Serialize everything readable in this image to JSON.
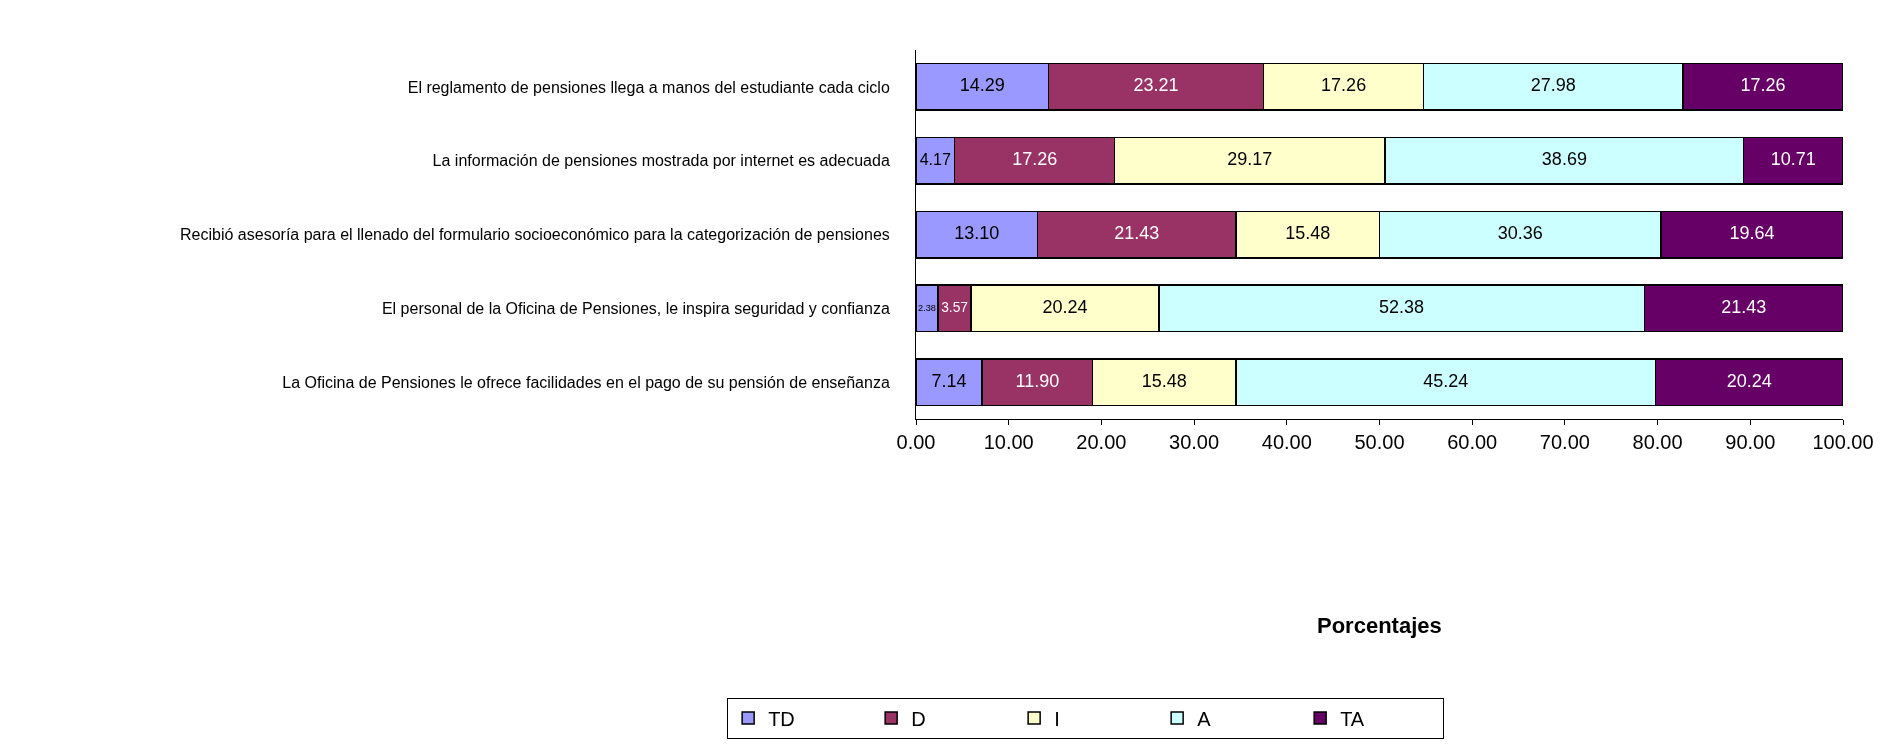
{
  "chart_data": {
    "type": "bar",
    "orientation": "horizontal",
    "stacked": true,
    "categories": [
      "El reglamento de pensiones llega a manos del estudiante cada ciclo",
      "La información de pensiones mostrada por internet es adecuada",
      "Recibió asesoría para el llenado del formulario socioeconómico para la categorización de pensiones",
      "El personal de la Oficina de Pensiones, le inspira seguridad y confianza",
      "La Oficina de Pensiones le ofrece facilidades en el pago de su pensión de enseñanza"
    ],
    "series": [
      {
        "name": "TD",
        "color": "#9999ff",
        "values": [
          14.29,
          4.17,
          13.1,
          2.38,
          7.14
        ],
        "value_labels": [
          "14.29",
          "4.17",
          "13.10",
          "2.38",
          "7.14"
        ]
      },
      {
        "name": "D",
        "color": "#993366",
        "values": [
          23.21,
          17.26,
          21.43,
          3.57,
          11.9
        ],
        "value_labels": [
          "23.21",
          "17.26",
          "21.43",
          "3.57",
          "11.90"
        ]
      },
      {
        "name": "I",
        "color": "#ffffcc",
        "values": [
          17.26,
          29.17,
          15.48,
          20.24,
          15.48
        ],
        "value_labels": [
          "17.26",
          "29.17",
          "15.48",
          "20.24",
          "15.48"
        ]
      },
      {
        "name": "A",
        "color": "#ccffff",
        "values": [
          27.98,
          38.69,
          30.36,
          52.38,
          45.24
        ],
        "value_labels": [
          "27.98",
          "38.69",
          "30.36",
          "52.38",
          "45.24"
        ]
      },
      {
        "name": "TA",
        "color": "#660066",
        "values": [
          17.26,
          10.71,
          19.64,
          21.43,
          20.24
        ],
        "value_labels": [
          "17.26",
          "10.71",
          "19.64",
          "21.43",
          "20.24"
        ]
      }
    ],
    "annotations": [
      "Porcentajes"
    ],
    "xlim": [
      0,
      100
    ],
    "xticks": [
      {
        "value": 0,
        "label": "0.00"
      },
      {
        "value": 10,
        "label": "10.00"
      },
      {
        "value": 20,
        "label": "20.00"
      },
      {
        "value": 30,
        "label": "30.00"
      },
      {
        "value": 40,
        "label": "40.00"
      },
      {
        "value": 50,
        "label": "50.00"
      },
      {
        "value": 60,
        "label": "60.00"
      },
      {
        "value": 70,
        "label": "70.00"
      },
      {
        "value": 80,
        "label": "80.00"
      },
      {
        "value": 90,
        "label": "90.00"
      },
      {
        "value": 100,
        "label": "100.00"
      }
    ],
    "legend": "bottom"
  }
}
